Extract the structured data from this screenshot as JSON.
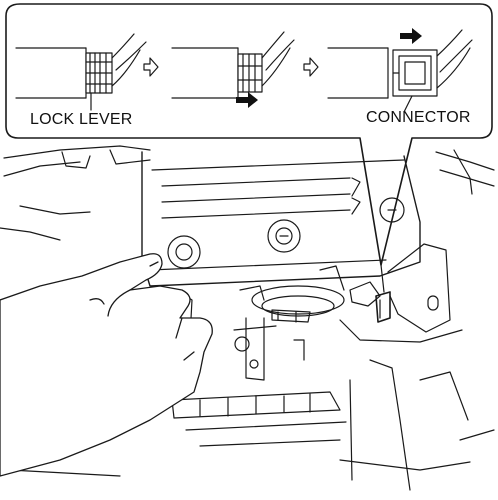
{
  "labels": {
    "lock_lever": "LOCK LEVER",
    "connector": "CONNECTOR"
  },
  "icons": {
    "step_arrow": "hollow-right-arrow",
    "direction_arrow": "filled-right-arrow"
  },
  "colors": {
    "line": "#1a1a1a",
    "background": "#ffffff"
  }
}
